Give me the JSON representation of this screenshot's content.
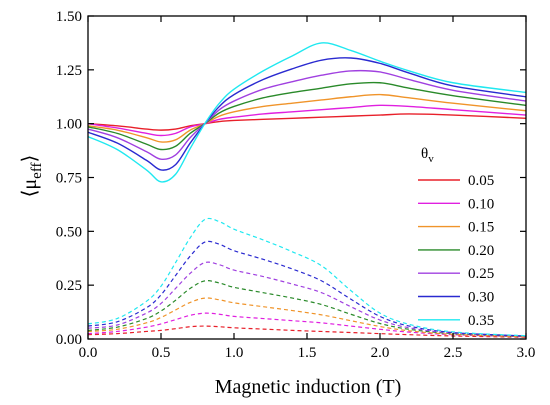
{
  "chart_data": {
    "type": "line",
    "xlabel": "Magnetic induction (T)",
    "ylabel": "⟨μ_eff⟩",
    "ylabel_main": "μ",
    "ylabel_sub": "eff",
    "xlim": [
      0.0,
      3.0
    ],
    "ylim": [
      0.0,
      1.5
    ],
    "x_ticks": [
      "0.0",
      "0.5",
      "1.0",
      "1.5",
      "2.0",
      "2.5",
      "3.0"
    ],
    "y_ticks": [
      "0.00",
      "0.25",
      "0.50",
      "0.75",
      "1.00",
      "1.25",
      "1.50"
    ],
    "grid": false,
    "legend_title": "θv",
    "legend_title_main": "θ",
    "legend_title_sub": "v",
    "legend_placement": "right",
    "x": [
      0.0,
      0.2,
      0.4,
      0.5,
      0.6,
      0.7,
      0.8,
      0.9,
      1.0,
      1.2,
      1.4,
      1.6,
      1.8,
      2.0,
      2.2,
      2.5,
      3.0
    ],
    "series": [
      {
        "name": "0.05",
        "color": "#e8202a",
        "solid": [
          1.0,
          0.99,
          0.975,
          0.97,
          0.975,
          0.99,
          1.0,
          1.01,
          1.015,
          1.02,
          1.025,
          1.03,
          1.035,
          1.04,
          1.045,
          1.04,
          1.025
        ],
        "dashed": [
          0.02,
          0.025,
          0.035,
          0.04,
          0.048,
          0.057,
          0.06,
          0.057,
          0.052,
          0.046,
          0.04,
          0.035,
          0.03,
          0.025,
          0.02,
          0.014,
          0.008
        ]
      },
      {
        "name": "0.10",
        "color": "#e020e0",
        "solid": [
          1.0,
          0.98,
          0.955,
          0.945,
          0.955,
          0.985,
          1.0,
          1.02,
          1.03,
          1.045,
          1.055,
          1.065,
          1.075,
          1.085,
          1.08,
          1.065,
          1.04
        ],
        "dashed": [
          0.025,
          0.035,
          0.055,
          0.07,
          0.09,
          0.11,
          0.12,
          0.115,
          0.105,
          0.095,
          0.085,
          0.075,
          0.06,
          0.045,
          0.032,
          0.02,
          0.01
        ]
      },
      {
        "name": "0.15",
        "color": "#f0942a",
        "solid": [
          0.99,
          0.97,
          0.935,
          0.915,
          0.925,
          0.97,
          1.0,
          1.035,
          1.055,
          1.08,
          1.095,
          1.11,
          1.125,
          1.135,
          1.12,
          1.095,
          1.06
        ],
        "dashed": [
          0.035,
          0.045,
          0.075,
          0.1,
          0.135,
          0.17,
          0.19,
          0.182,
          0.168,
          0.15,
          0.132,
          0.112,
          0.085,
          0.058,
          0.038,
          0.022,
          0.01
        ]
      },
      {
        "name": "0.20",
        "color": "#2a8a2a",
        "solid": [
          0.985,
          0.955,
          0.905,
          0.88,
          0.895,
          0.955,
          1.0,
          1.05,
          1.08,
          1.12,
          1.145,
          1.165,
          1.185,
          1.19,
          1.165,
          1.13,
          1.085
        ],
        "dashed": [
          0.04,
          0.055,
          0.095,
          0.13,
          0.18,
          0.235,
          0.27,
          0.26,
          0.24,
          0.215,
          0.19,
          0.16,
          0.115,
          0.072,
          0.045,
          0.025,
          0.012
        ]
      },
      {
        "name": "0.25",
        "color": "#a040e0",
        "solid": [
          0.975,
          0.935,
          0.87,
          0.835,
          0.855,
          0.935,
          1.0,
          1.065,
          1.105,
          1.16,
          1.195,
          1.225,
          1.245,
          1.24,
          1.205,
          1.155,
          1.105
        ],
        "dashed": [
          0.05,
          0.065,
          0.12,
          0.165,
          0.235,
          0.305,
          0.355,
          0.345,
          0.32,
          0.29,
          0.255,
          0.215,
          0.15,
          0.088,
          0.052,
          0.028,
          0.013
        ]
      },
      {
        "name": "0.30",
        "color": "#2a2ad0",
        "solid": [
          0.96,
          0.91,
          0.83,
          0.785,
          0.81,
          0.91,
          1.0,
          1.08,
          1.135,
          1.205,
          1.255,
          1.295,
          1.305,
          1.28,
          1.235,
          1.175,
          1.125
        ],
        "dashed": [
          0.06,
          0.08,
          0.145,
          0.205,
          0.295,
          0.385,
          0.45,
          0.44,
          0.41,
          0.37,
          0.325,
          0.27,
          0.185,
          0.105,
          0.06,
          0.03,
          0.014
        ]
      },
      {
        "name": "0.35",
        "color": "#20e8f0",
        "solid": [
          0.94,
          0.88,
          0.785,
          0.73,
          0.765,
          0.885,
          1.0,
          1.095,
          1.16,
          1.245,
          1.315,
          1.375,
          1.34,
          1.29,
          1.245,
          1.19,
          1.145
        ],
        "dashed": [
          0.07,
          0.095,
          0.175,
          0.245,
          0.355,
          0.47,
          0.555,
          0.545,
          0.51,
          0.46,
          0.405,
          0.34,
          0.225,
          0.12,
          0.068,
          0.033,
          0.015
        ]
      }
    ]
  }
}
